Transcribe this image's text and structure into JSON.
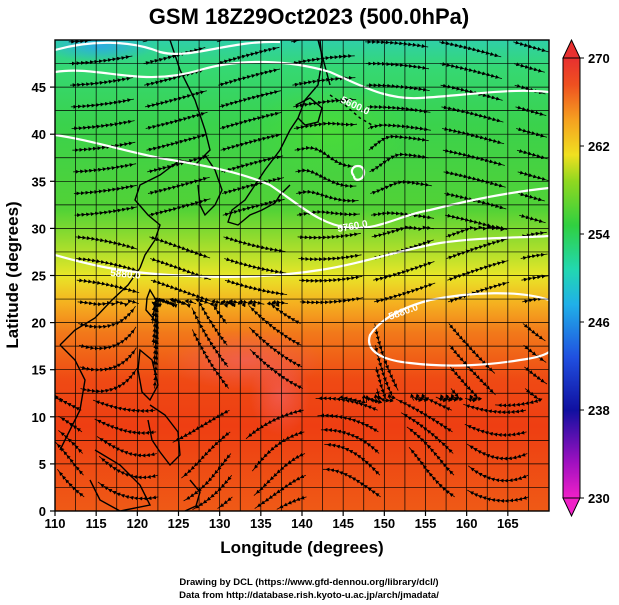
{
  "title": "GSM 18Z29Oct2023 (500.0hPa)",
  "xlabel": "Longitude (degrees)",
  "ylabel": "Latitude  (degrees)",
  "x_ticks": [
    "110",
    "115",
    "120",
    "125",
    "130",
    "135",
    "140",
    "145",
    "150",
    "155",
    "160",
    "165"
  ],
  "y_ticks": [
    "0",
    "5",
    "10",
    "15",
    "20",
    "25",
    "30",
    "35",
    "40",
    "45"
  ],
  "colorbar": {
    "labels": [
      "270",
      "262",
      "254",
      "246",
      "238",
      "230"
    ],
    "range": [
      230,
      270
    ]
  },
  "contour_labels": [
    {
      "text": "5600.0"
    },
    {
      "text": "5760.0"
    },
    {
      "text": "5880.0"
    },
    {
      "text": "5880.0"
    }
  ],
  "credits": {
    "line1": "Drawing by DCL (https://www.gfd-dennou.org/library/dcl/)",
    "line2": "Data from http://database.rish.kyoto-u.ac.jp/arch/jmadata/"
  },
  "map": {
    "lon_range": [
      110,
      170
    ],
    "lat_range": [
      0,
      50
    ],
    "field": "temperature (K)",
    "contours": "geopotential height (m)",
    "overlay": "wind streamlines",
    "grid": true
  },
  "colors": {
    "cold": "#1f3fcf",
    "cool": "#25c8e0",
    "mid": "#3fd23a",
    "warm": "#f0e020",
    "hot": "#ee3a10",
    "contour": "#ffffff",
    "coast": "#000000"
  }
}
